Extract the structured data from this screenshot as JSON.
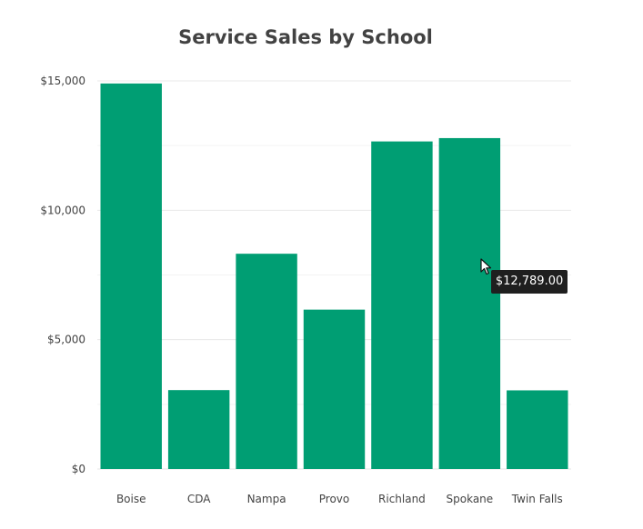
{
  "colors": {
    "bar": "#009e73",
    "tooltip_bg": "#1f1f1f"
  },
  "chart_data": {
    "type": "bar",
    "title": "Service Sales by School",
    "xlabel": "",
    "ylabel": "",
    "categories": [
      "Boise",
      "CDA",
      "Nampa",
      "Provo",
      "Richland",
      "Spokane",
      "Twin Falls"
    ],
    "values": [
      14900,
      3050,
      8320,
      6160,
      12660,
      12789,
      3040
    ],
    "ylim": [
      0,
      15000
    ],
    "y_ticks": [
      0,
      5000,
      10000,
      15000
    ],
    "y_tick_labels": [
      "$0",
      "$5,000",
      "$10,000",
      "$15,000"
    ],
    "grid": true,
    "legend": "none"
  },
  "tooltip": {
    "category": "Spokane",
    "text": "$12,789.00"
  }
}
